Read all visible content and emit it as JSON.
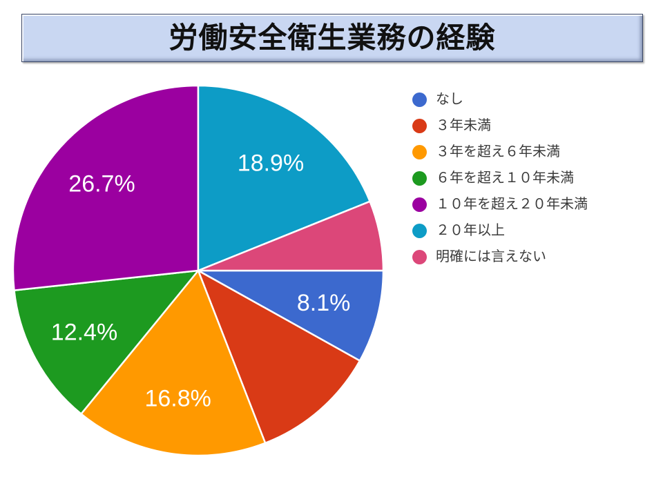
{
  "title": "労働安全衛生業務の経験",
  "theme": {
    "background": "#ffffff",
    "title_bar_bg": "#c9d7f2",
    "title_bar_border": "#3a4766",
    "title_text_color": "#111111",
    "slice_label_color": "#ffffff",
    "legend_text_color": "#3a3a3a",
    "slice_separator_color": "#ffffff"
  },
  "chart_data": {
    "type": "pie",
    "title": "労働安全衛生業務の経験",
    "legend_position": "right",
    "start_angle_deg": 90,
    "direction": "clockwise",
    "slices": [
      {
        "label": "なし",
        "value": 8.1,
        "color": "#3C69CE",
        "pct_label": "8.1%",
        "label_visible": true
      },
      {
        "label": "３年未満",
        "value": 11.0,
        "color": "#D93A16",
        "pct_label": "",
        "label_visible": false
      },
      {
        "label": "３年を超え６年未満",
        "value": 16.8,
        "color": "#FF9900",
        "pct_label": "16.8%",
        "label_visible": true
      },
      {
        "label": "６年を超え１０年未満",
        "value": 12.4,
        "color": "#1D9A20",
        "pct_label": "12.4%",
        "label_visible": true
      },
      {
        "label": "１０年を超え２０年未満",
        "value": 26.7,
        "color": "#9B00A0",
        "pct_label": "26.7%",
        "label_visible": true
      },
      {
        "label": "２０年以上",
        "value": 18.9,
        "color": "#0D9CC6",
        "pct_label": "18.9%",
        "label_visible": true
      },
      {
        "label": "明確には言えない",
        "value": 6.1,
        "color": "#DC4779",
        "pct_label": "",
        "label_visible": false
      }
    ]
  }
}
